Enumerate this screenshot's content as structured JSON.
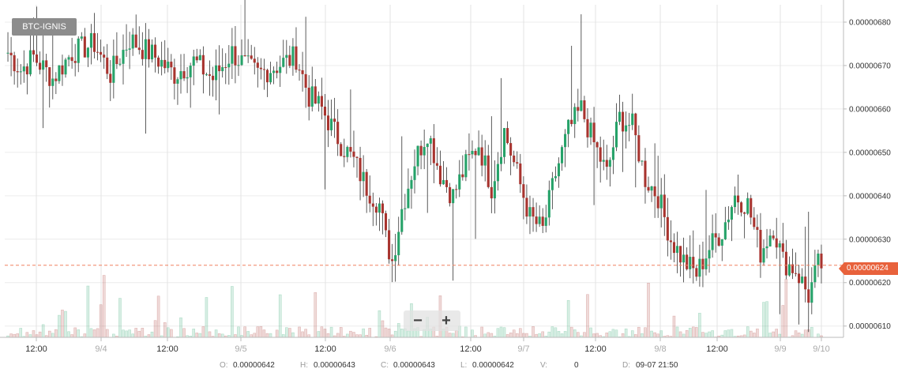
{
  "pair_label": "BTC-IGNIS",
  "zoom": {
    "out_label": "−",
    "in_label": "+"
  },
  "ohlc": {
    "o_label": "O:",
    "o_value": "0.00000642",
    "h_label": "H:",
    "h_value": "0.00000643",
    "c_label": "C:",
    "c_value": "0.00000643",
    "l_label": "L:",
    "l_value": "0.00000642",
    "v_label": "V:",
    "v_value": "0",
    "d_label": "D:",
    "d_value": "09-07 21:50"
  },
  "current_price_label": "0.00000624",
  "colors": {
    "up": "#26a269",
    "down": "#a8342f",
    "price_line": "#f08060",
    "tag": "#e8623c"
  },
  "chart_data": {
    "type": "candlestick",
    "y_ticks": [
      "0.00000610",
      "0.00000620",
      "0.00000630",
      "0.00000640",
      "0.00000650",
      "0.00000660",
      "0.00000670",
      "0.00000680"
    ],
    "y_tick_values": [
      6.1,
      6.2,
      6.3,
      6.4,
      6.5,
      6.6,
      6.7,
      6.8
    ],
    "ylim": [
      6.074,
      6.84
    ],
    "x_tick_labels": [
      "12:00",
      "9/4",
      "12:00",
      "9/5",
      "12:00",
      "9/6",
      "12:00",
      "9/7",
      "12:00",
      "9/8",
      "12:00",
      "9/9",
      "9/10"
    ],
    "x_ticks_day": [
      "9/4",
      "9/5",
      "9/6",
      "9/7",
      "9/8",
      "9/9",
      "9/10"
    ],
    "current_price": 6.24,
    "price_scale": "x 1e-6 BTC",
    "segments": [
      [
        0,
        6.73
      ],
      [
        4,
        6.69
      ],
      [
        8,
        6.72
      ],
      [
        14,
        6.67
      ],
      [
        20,
        6.73
      ],
      [
        27,
        6.75
      ],
      [
        32,
        6.68
      ],
      [
        38,
        6.76
      ],
      [
        46,
        6.72
      ],
      [
        52,
        6.68
      ],
      [
        58,
        6.71
      ],
      [
        64,
        6.67
      ],
      [
        70,
        6.73
      ],
      [
        74,
        6.7
      ],
      [
        78,
        6.68
      ],
      [
        84,
        6.7
      ],
      [
        90,
        6.72
      ],
      [
        94,
        6.63
      ],
      [
        98,
        6.6
      ],
      [
        104,
        6.52
      ],
      [
        108,
        6.48
      ],
      [
        112,
        6.42
      ],
      [
        116,
        6.38
      ],
      [
        118,
        6.3
      ],
      [
        120,
        6.25
      ],
      [
        123,
        6.37
      ],
      [
        127,
        6.48
      ],
      [
        131,
        6.55
      ],
      [
        135,
        6.45
      ],
      [
        139,
        6.4
      ],
      [
        143,
        6.47
      ],
      [
        147,
        6.52
      ],
      [
        151,
        6.42
      ],
      [
        155,
        6.55
      ],
      [
        159,
        6.45
      ],
      [
        163,
        6.35
      ],
      [
        167,
        6.32
      ],
      [
        171,
        6.45
      ],
      [
        175,
        6.55
      ],
      [
        179,
        6.6
      ],
      [
        183,
        6.52
      ],
      [
        187,
        6.45
      ],
      [
        191,
        6.58
      ],
      [
        195,
        6.56
      ],
      [
        199,
        6.44
      ],
      [
        203,
        6.4
      ],
      [
        207,
        6.3
      ],
      [
        211,
        6.25
      ],
      [
        215,
        6.22
      ],
      [
        219,
        6.28
      ],
      [
        223,
        6.32
      ],
      [
        227,
        6.4
      ],
      [
        231,
        6.38
      ],
      [
        235,
        6.27
      ],
      [
        239,
        6.33
      ],
      [
        242,
        6.25
      ],
      [
        246,
        6.23
      ],
      [
        250,
        6.17
      ],
      [
        253,
        6.24
      ]
    ],
    "volume_note": "volume histogram bars at bottom of plot"
  }
}
